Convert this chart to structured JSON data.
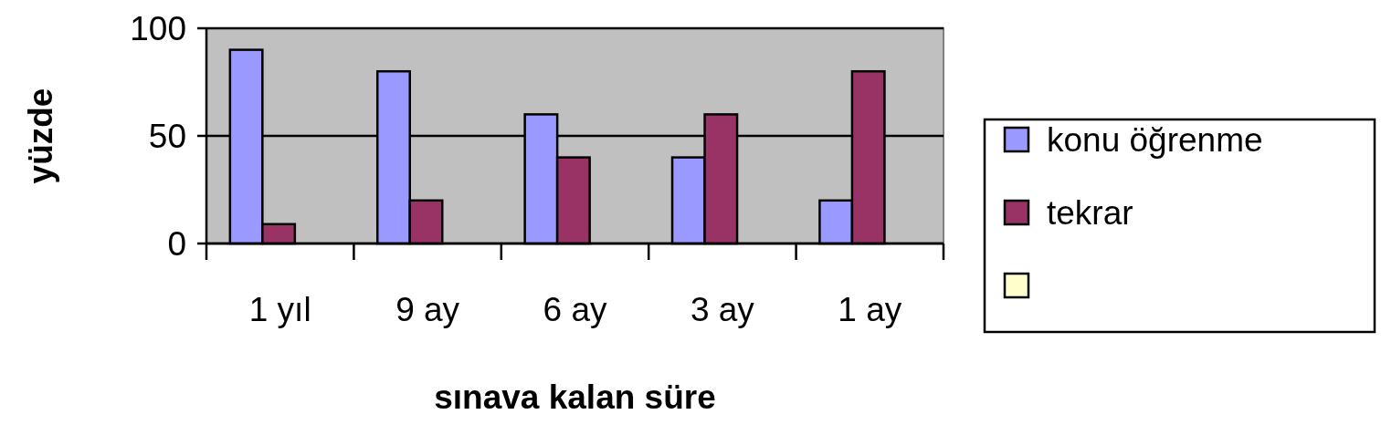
{
  "chart_data": {
    "type": "bar",
    "xlabel": "sınava kalan süre",
    "ylabel": "yüzde",
    "categories": [
      "1 yıl",
      "9 ay",
      "6 ay",
      "3 ay",
      "1 ay"
    ],
    "series": [
      {
        "name": "konu öğrenme",
        "color": "#9999ff",
        "values": [
          90,
          80,
          60,
          40,
          20
        ]
      },
      {
        "name": "tekrar",
        "color": "#993366",
        "values": [
          9,
          20,
          40,
          60,
          80
        ]
      },
      {
        "color": "#ffffcc",
        "values": [
          null,
          null,
          null,
          null,
          null
        ]
      }
    ],
    "ylim": [
      0,
      100
    ],
    "yticks": [
      0,
      50,
      100
    ],
    "grid": "y",
    "legend": "right"
  }
}
